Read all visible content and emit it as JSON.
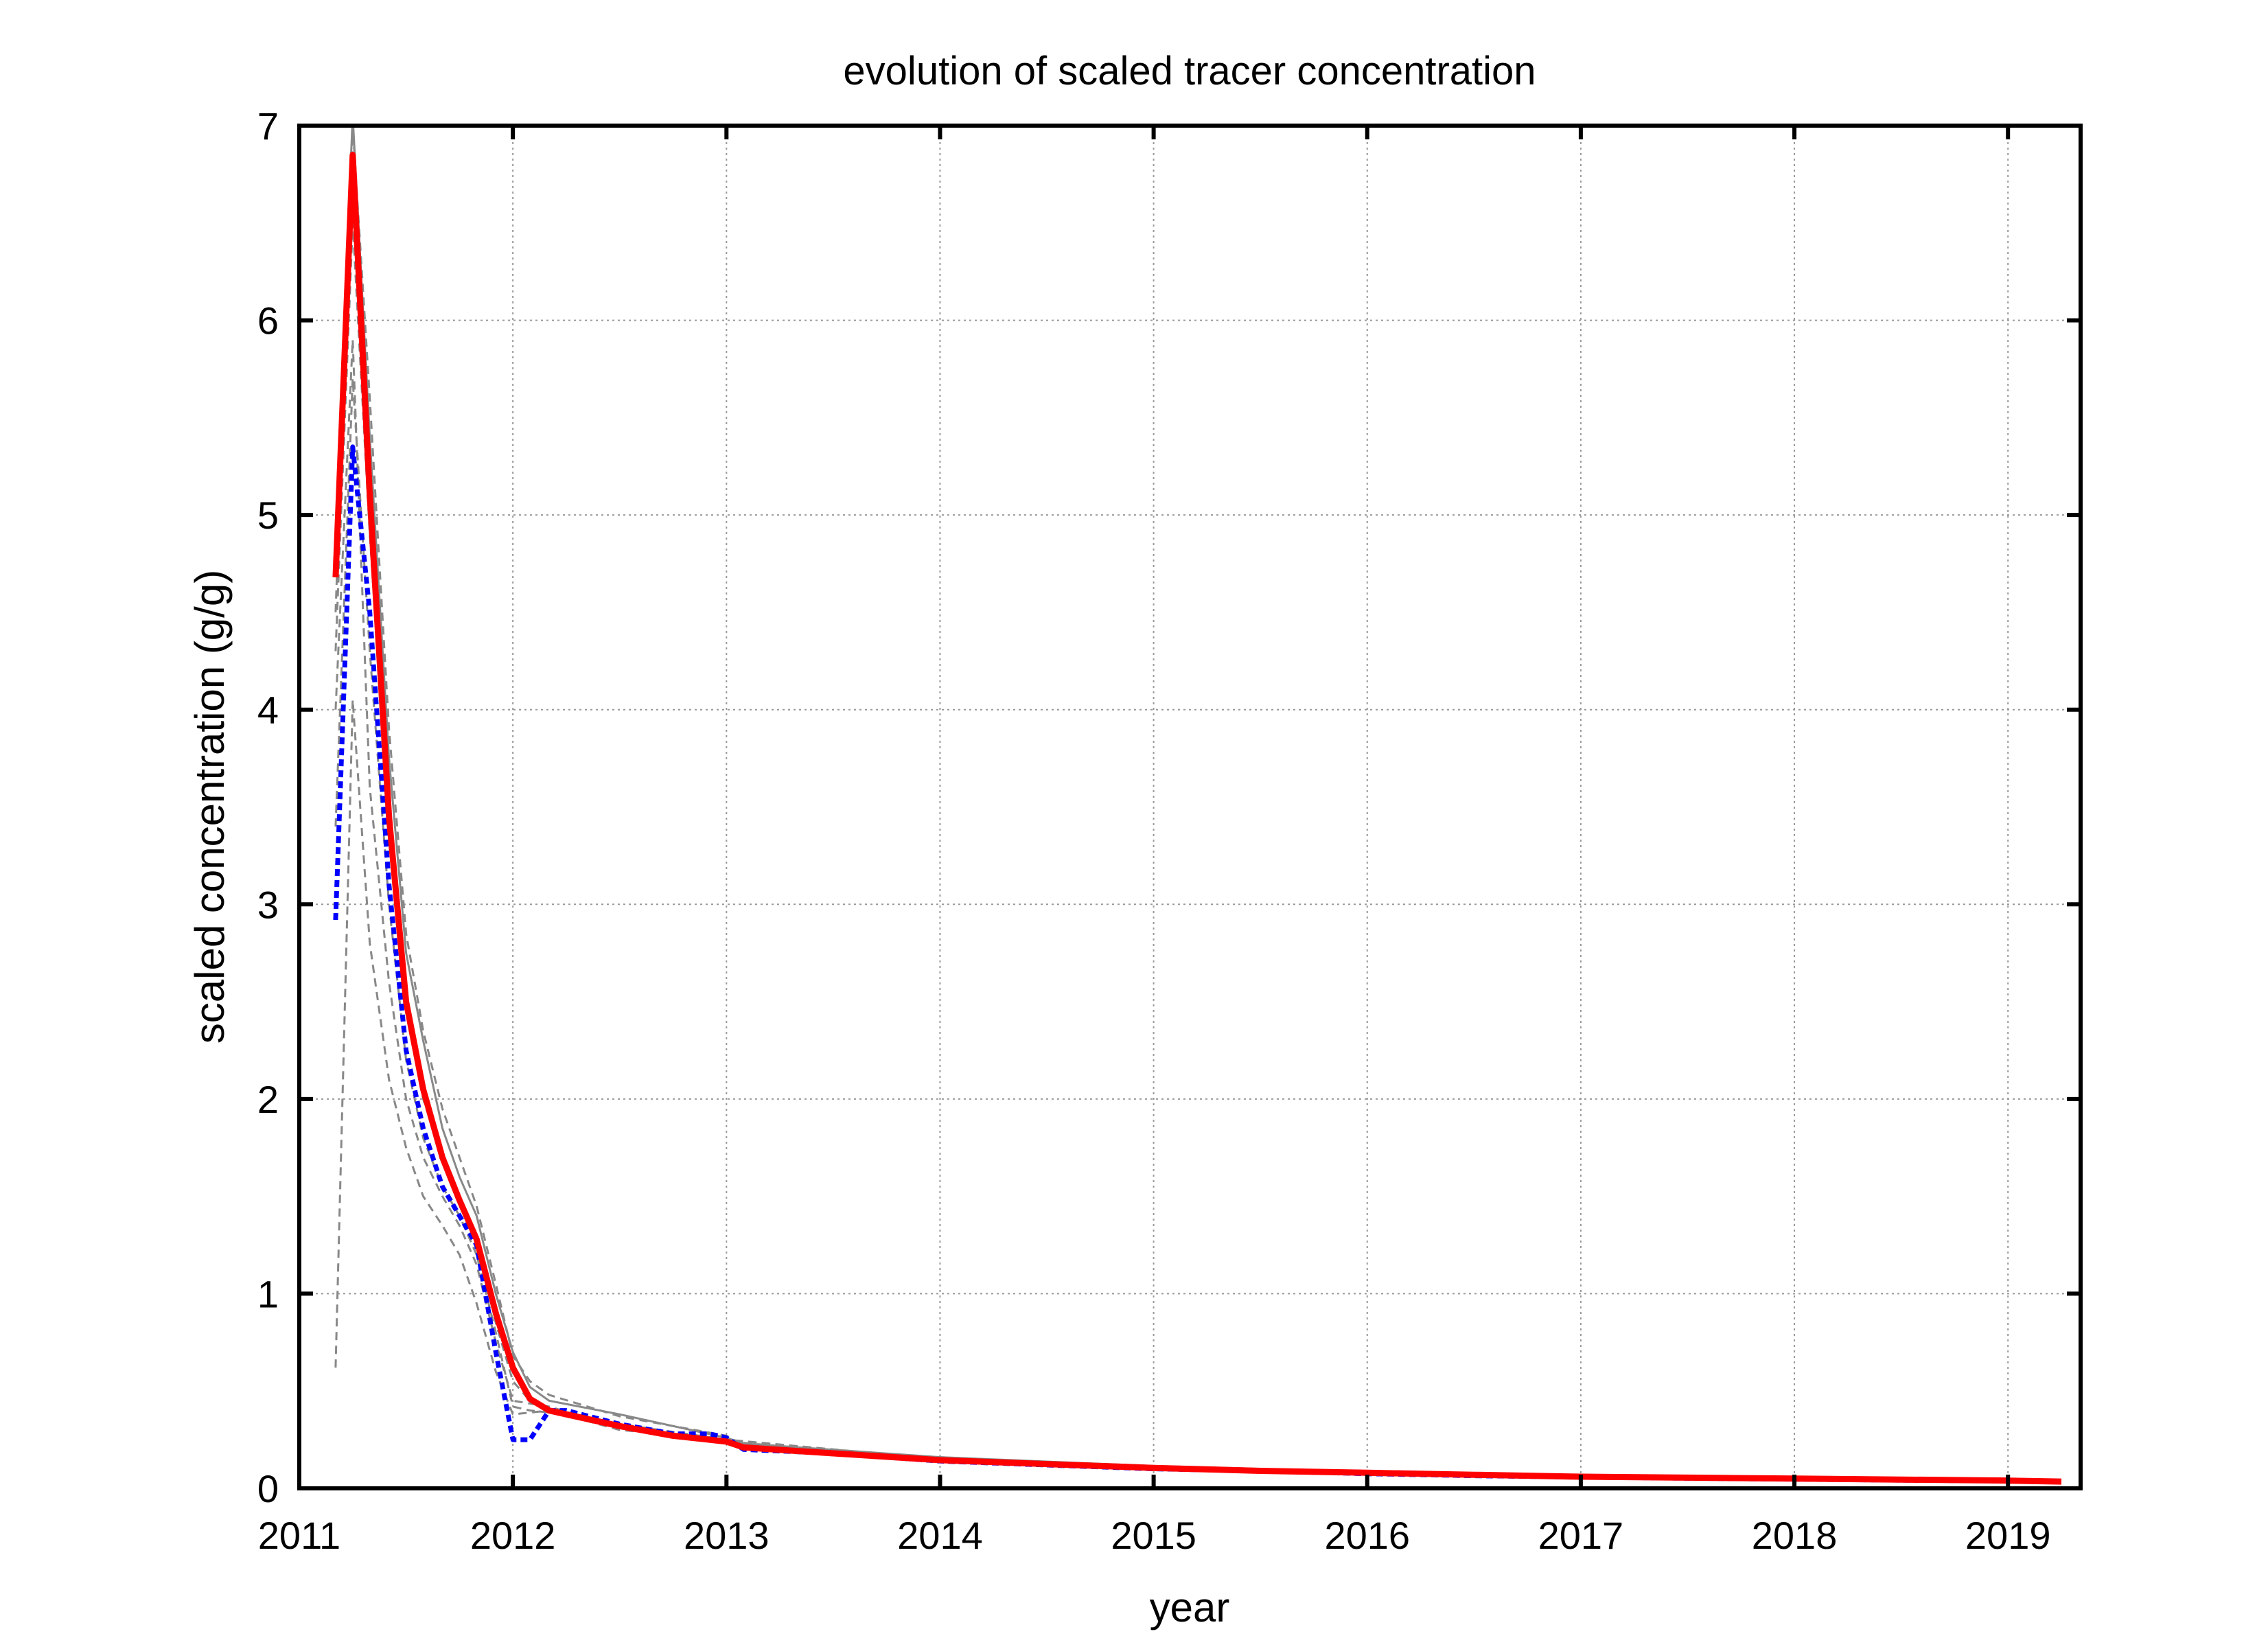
{
  "chart_data": {
    "type": "line",
    "title": "evolution of  scaled tracer concentration",
    "xlabel": "year",
    "ylabel": "scaled concentration (g/g)",
    "xlim": [
      2011,
      2019.34
    ],
    "ylim": [
      0,
      7
    ],
    "x_ticks": [
      2011,
      2012,
      2013,
      2014,
      2015,
      2016,
      2017,
      2018,
      2019
    ],
    "y_ticks": [
      0,
      1,
      2,
      3,
      4,
      5,
      6,
      7
    ],
    "x_tick_labels": [
      "2011",
      "2012",
      "2013",
      "2014",
      "2015",
      "2016",
      "2017",
      "2018",
      "2019"
    ],
    "y_tick_labels": [
      "0",
      "1",
      "2",
      "3",
      "4",
      "5",
      "6",
      "7"
    ],
    "grid": true,
    "legend": "none",
    "colors": {
      "mean": "#ff0000",
      "reference": "#0000ff",
      "members": "#888888",
      "axes": "#000000",
      "grid": "#999999"
    },
    "series": [
      {
        "style": "solid",
        "color": "#ff0000",
        "points": [
          [
            2011.17,
            4.68
          ],
          [
            2011.25,
            6.85
          ],
          [
            2011.33,
            5.1
          ],
          [
            2011.42,
            3.45
          ],
          [
            2011.5,
            2.5
          ],
          [
            2011.58,
            2.05
          ],
          [
            2011.67,
            1.7
          ],
          [
            2011.75,
            1.48
          ],
          [
            2011.83,
            1.28
          ],
          [
            2011.92,
            0.9
          ],
          [
            2012.0,
            0.62
          ],
          [
            2012.08,
            0.46
          ],
          [
            2012.17,
            0.4
          ],
          [
            2012.25,
            0.38
          ],
          [
            2012.5,
            0.32
          ],
          [
            2012.75,
            0.27
          ],
          [
            2012.92,
            0.25
          ],
          [
            2013.0,
            0.24
          ],
          [
            2013.08,
            0.21
          ],
          [
            2013.5,
            0.18
          ],
          [
            2014.0,
            0.145
          ],
          [
            2014.5,
            0.125
          ],
          [
            2015.0,
            0.105
          ],
          [
            2015.5,
            0.09
          ],
          [
            2016.0,
            0.08
          ],
          [
            2016.5,
            0.07
          ],
          [
            2017.0,
            0.06
          ],
          [
            2017.5,
            0.055
          ],
          [
            2018.0,
            0.05
          ],
          [
            2018.5,
            0.045
          ],
          [
            2019.0,
            0.04
          ],
          [
            2019.25,
            0.035
          ]
        ]
      },
      {
        "style": "dotted",
        "color": "#0000ff",
        "points": [
          [
            2011.17,
            2.92
          ],
          [
            2011.25,
            5.35
          ],
          [
            2011.33,
            4.5
          ],
          [
            2011.42,
            3.1
          ],
          [
            2011.5,
            2.25
          ],
          [
            2011.58,
            1.85
          ],
          [
            2011.67,
            1.55
          ],
          [
            2011.75,
            1.4
          ],
          [
            2011.83,
            1.25
          ],
          [
            2011.92,
            0.7
          ],
          [
            2012.0,
            0.25
          ],
          [
            2012.08,
            0.25
          ],
          [
            2012.17,
            0.4
          ],
          [
            2012.25,
            0.4
          ],
          [
            2012.5,
            0.33
          ],
          [
            2012.75,
            0.28
          ],
          [
            2012.92,
            0.28
          ],
          [
            2013.0,
            0.26
          ],
          [
            2013.08,
            0.2
          ],
          [
            2013.5,
            0.18
          ],
          [
            2014.0,
            0.14
          ],
          [
            2014.5,
            0.12
          ],
          [
            2015.0,
            0.1
          ],
          [
            2015.5,
            0.09
          ],
          [
            2016.0,
            0.075
          ],
          [
            2016.5,
            0.065
          ],
          [
            2017.0,
            0.058
          ],
          [
            2017.5,
            0.052
          ],
          [
            2018.0,
            0.047
          ],
          [
            2018.5,
            0.042
          ],
          [
            2019.0,
            0.038
          ],
          [
            2019.25,
            0.034
          ]
        ]
      },
      {
        "style": "dashed",
        "color": "#888888",
        "points": [
          [
            2011.17,
            0.62
          ],
          [
            2011.25,
            4.05
          ],
          [
            2011.33,
            2.8
          ],
          [
            2011.42,
            2.1
          ],
          [
            2011.5,
            1.75
          ],
          [
            2011.58,
            1.5
          ],
          [
            2011.67,
            1.35
          ],
          [
            2011.75,
            1.2
          ],
          [
            2011.83,
            0.95
          ],
          [
            2011.92,
            0.6
          ],
          [
            2012.0,
            0.38
          ],
          [
            2012.17,
            0.4
          ],
          [
            2012.5,
            0.3
          ],
          [
            2013.0,
            0.25
          ],
          [
            2014.0,
            0.15
          ],
          [
            2015.0,
            0.11
          ],
          [
            2016.0,
            0.08
          ],
          [
            2017.0,
            0.06
          ],
          [
            2018.0,
            0.05
          ],
          [
            2019.25,
            0.035
          ]
        ]
      },
      {
        "style": "dashed",
        "color": "#888888",
        "points": [
          [
            2011.17,
            4.0
          ],
          [
            2011.25,
            5.9
          ],
          [
            2011.33,
            3.6
          ],
          [
            2011.42,
            2.6
          ],
          [
            2011.5,
            2.0
          ],
          [
            2011.58,
            1.7
          ],
          [
            2011.67,
            1.5
          ],
          [
            2011.75,
            1.35
          ],
          [
            2011.83,
            1.15
          ],
          [
            2011.92,
            0.75
          ],
          [
            2012.0,
            0.45
          ],
          [
            2012.17,
            0.42
          ],
          [
            2012.5,
            0.31
          ],
          [
            2013.0,
            0.24
          ],
          [
            2014.0,
            0.15
          ],
          [
            2015.0,
            0.11
          ],
          [
            2016.0,
            0.08
          ],
          [
            2017.0,
            0.06
          ],
          [
            2018.0,
            0.05
          ],
          [
            2019.25,
            0.035
          ]
        ]
      },
      {
        "style": "solid",
        "color": "#888888",
        "points": [
          [
            2011.17,
            4.9
          ],
          [
            2011.25,
            7.05
          ],
          [
            2011.33,
            5.4
          ],
          [
            2011.42,
            3.75
          ],
          [
            2011.5,
            2.75
          ],
          [
            2011.58,
            2.3
          ],
          [
            2011.67,
            1.85
          ],
          [
            2011.75,
            1.6
          ],
          [
            2011.83,
            1.4
          ],
          [
            2011.92,
            1.0
          ],
          [
            2012.0,
            0.7
          ],
          [
            2012.08,
            0.52
          ],
          [
            2012.17,
            0.45
          ],
          [
            2012.5,
            0.38
          ],
          [
            2013.0,
            0.26
          ],
          [
            2013.08,
            0.23
          ],
          [
            2014.0,
            0.16
          ],
          [
            2015.0,
            0.115
          ],
          [
            2016.0,
            0.085
          ],
          [
            2017.0,
            0.065
          ],
          [
            2018.0,
            0.052
          ],
          [
            2019.25,
            0.038
          ]
        ]
      },
      {
        "style": "dashed",
        "color": "#888888",
        "points": [
          [
            2011.17,
            4.5
          ],
          [
            2011.25,
            7.0
          ],
          [
            2011.33,
            5.6
          ],
          [
            2011.42,
            3.9
          ],
          [
            2011.5,
            2.85
          ],
          [
            2011.58,
            2.35
          ],
          [
            2011.67,
            1.95
          ],
          [
            2011.75,
            1.7
          ],
          [
            2011.83,
            1.45
          ],
          [
            2011.92,
            1.05
          ],
          [
            2012.0,
            0.68
          ],
          [
            2012.08,
            0.55
          ],
          [
            2012.17,
            0.48
          ],
          [
            2012.5,
            0.37
          ],
          [
            2013.0,
            0.27
          ],
          [
            2013.08,
            0.22
          ],
          [
            2014.0,
            0.16
          ],
          [
            2015.0,
            0.11
          ],
          [
            2016.0,
            0.085
          ],
          [
            2017.0,
            0.065
          ],
          [
            2018.0,
            0.052
          ],
          [
            2019.25,
            0.037
          ]
        ]
      },
      {
        "style": "dashed",
        "color": "#888888",
        "points": [
          [
            2011.17,
            4.3
          ],
          [
            2011.25,
            6.5
          ],
          [
            2011.33,
            4.9
          ],
          [
            2011.42,
            3.4
          ],
          [
            2011.5,
            2.45
          ],
          [
            2011.58,
            2.0
          ],
          [
            2011.67,
            1.7
          ],
          [
            2011.75,
            1.5
          ],
          [
            2011.83,
            1.3
          ],
          [
            2011.92,
            0.85
          ],
          [
            2012.0,
            0.55
          ],
          [
            2012.08,
            0.45
          ],
          [
            2012.17,
            0.41
          ],
          [
            2012.5,
            0.33
          ],
          [
            2013.0,
            0.25
          ],
          [
            2014.0,
            0.15
          ],
          [
            2015.0,
            0.105
          ],
          [
            2016.0,
            0.08
          ],
          [
            2017.0,
            0.062
          ],
          [
            2018.0,
            0.05
          ],
          [
            2019.25,
            0.036
          ]
        ]
      },
      {
        "style": "dashed",
        "color": "#888888",
        "points": [
          [
            2011.17,
            3.4
          ],
          [
            2011.25,
            5.7
          ],
          [
            2011.33,
            4.3
          ],
          [
            2011.42,
            3.0
          ],
          [
            2011.5,
            2.2
          ],
          [
            2011.58,
            1.8
          ],
          [
            2011.67,
            1.55
          ],
          [
            2011.75,
            1.4
          ],
          [
            2011.83,
            1.2
          ],
          [
            2011.92,
            0.8
          ],
          [
            2012.0,
            0.42
          ],
          [
            2012.08,
            0.4
          ],
          [
            2012.17,
            0.39
          ],
          [
            2012.5,
            0.31
          ],
          [
            2013.0,
            0.24
          ],
          [
            2014.0,
            0.145
          ],
          [
            2015.0,
            0.105
          ],
          [
            2016.0,
            0.078
          ],
          [
            2017.0,
            0.06
          ],
          [
            2018.0,
            0.048
          ],
          [
            2019.25,
            0.035
          ]
        ]
      }
    ]
  }
}
